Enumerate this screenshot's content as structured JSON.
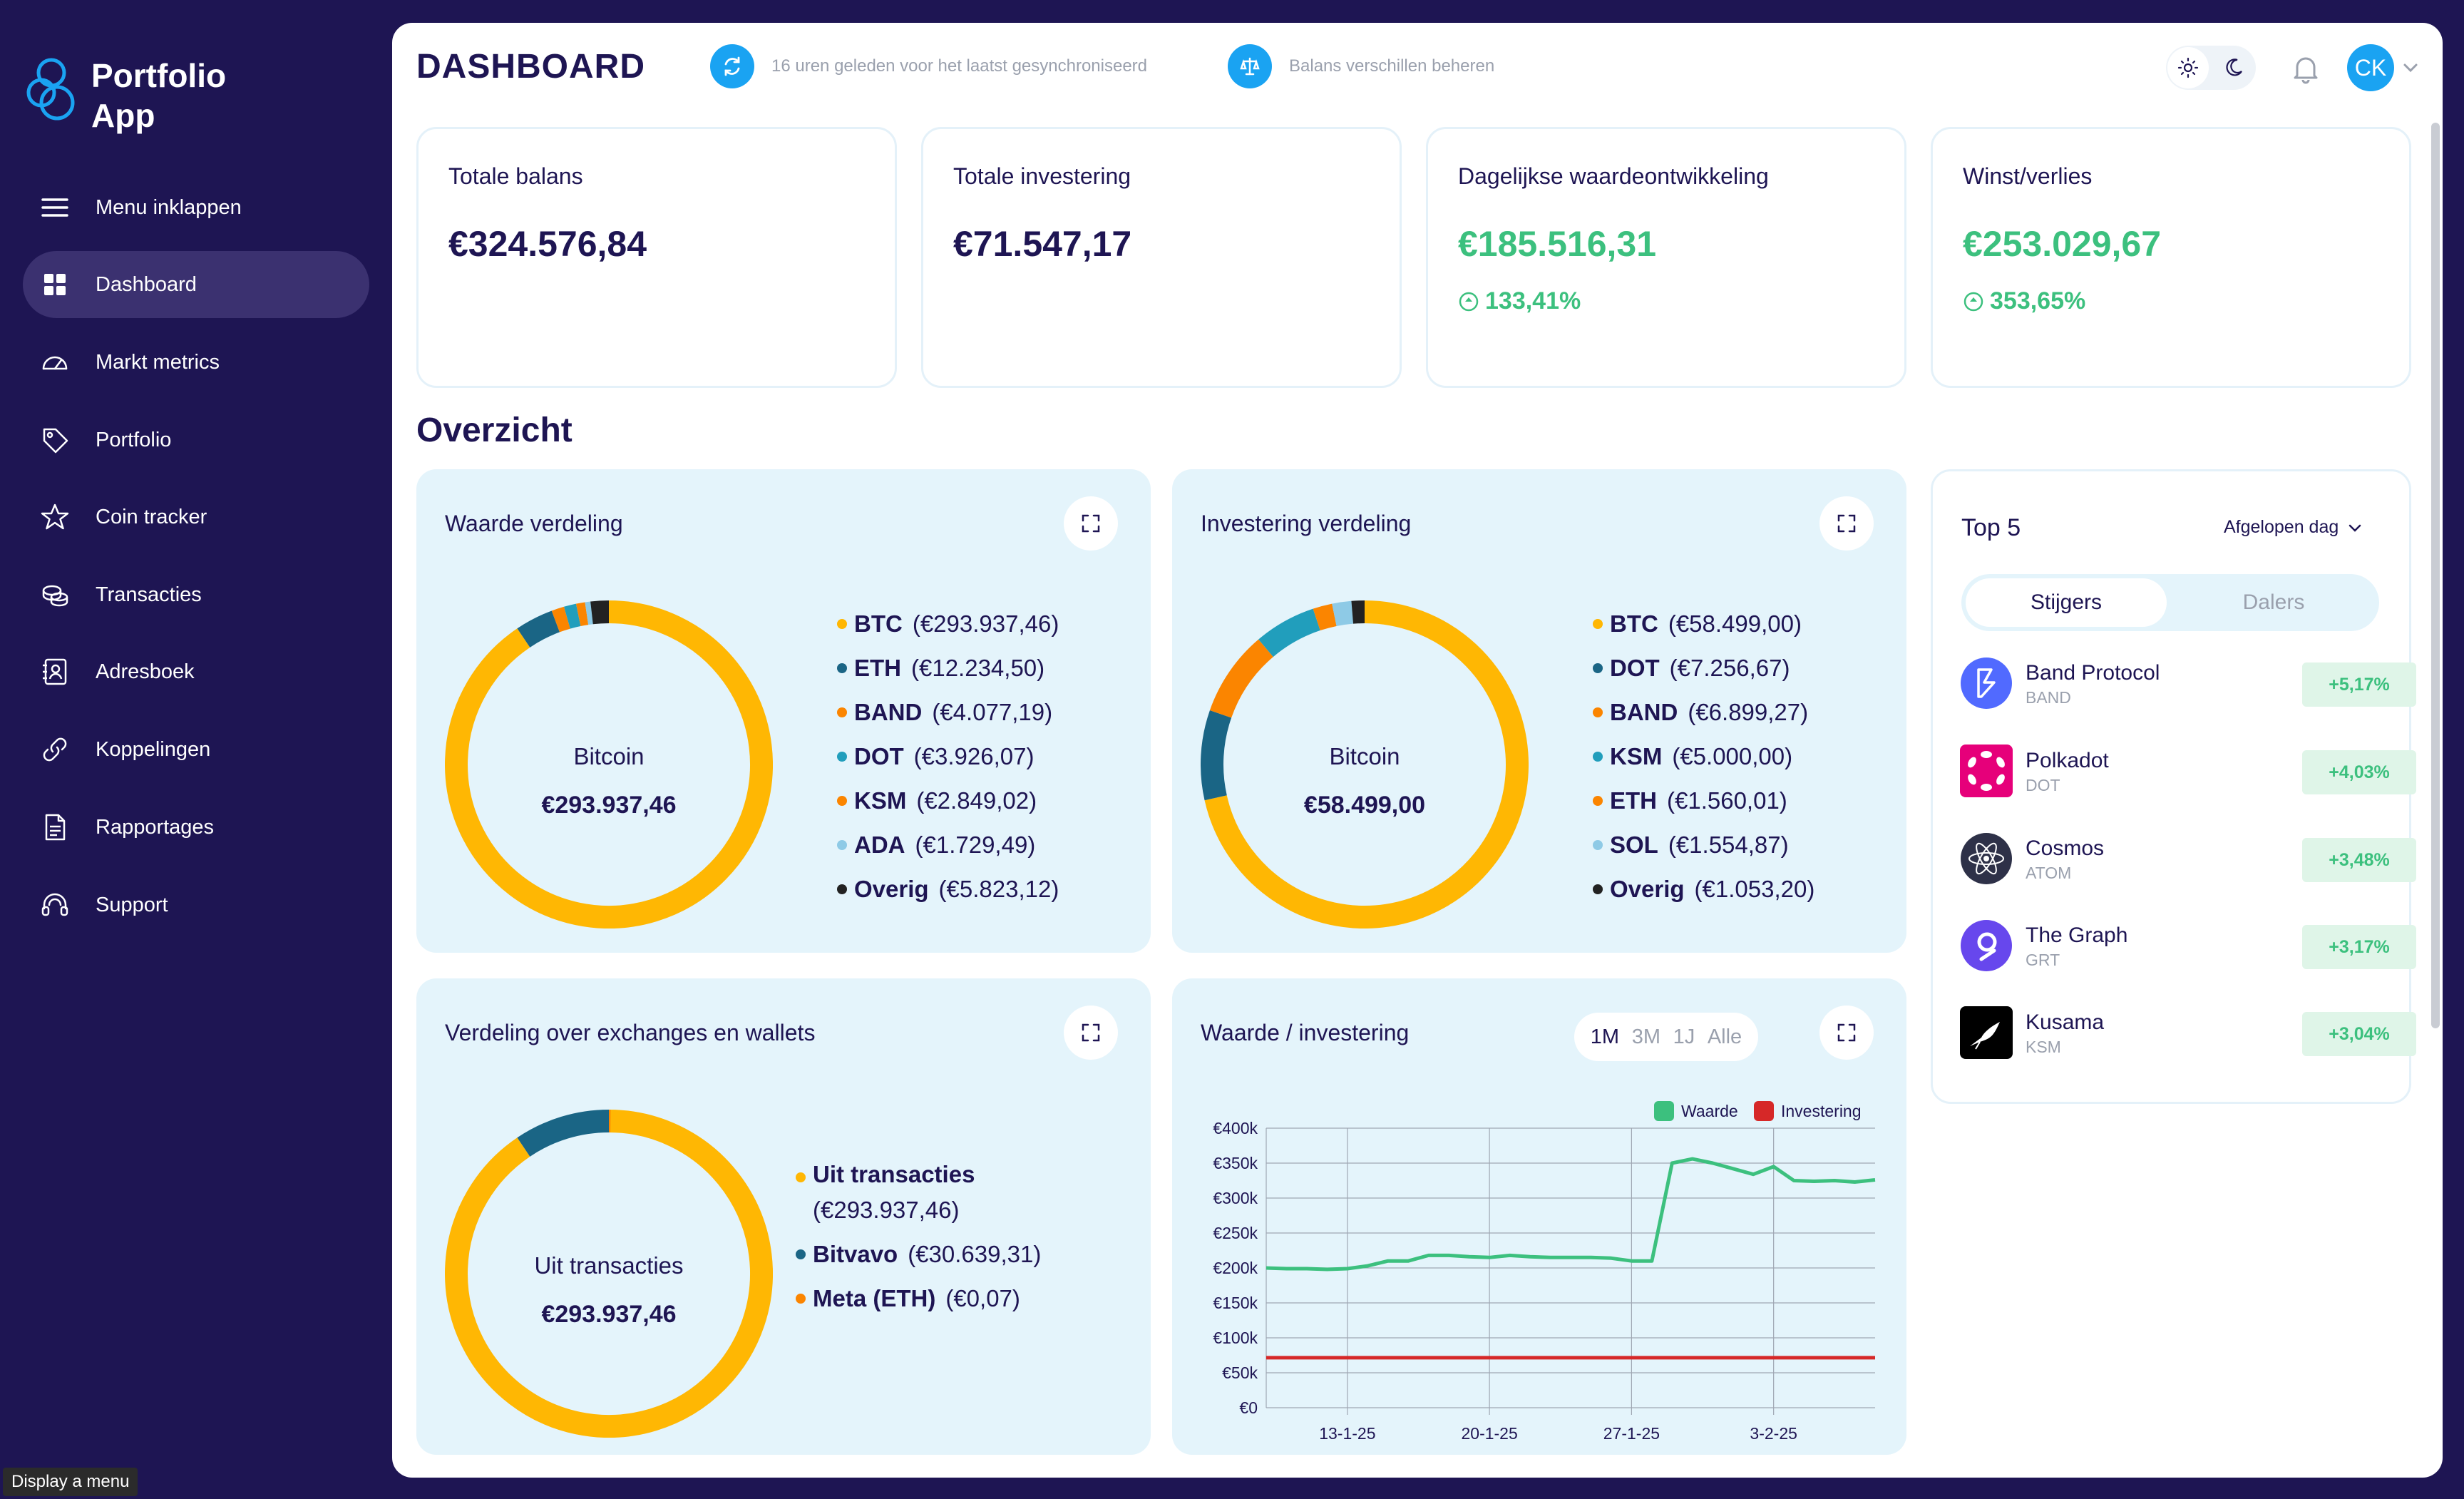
{
  "app": {
    "name_line1": "Portfolio",
    "name_line2": "App"
  },
  "sidebar": {
    "items": [
      {
        "label": "Menu inklappen",
        "icon": "hamburger-icon"
      },
      {
        "label": "Dashboard",
        "icon": "grid-icon",
        "active": true
      },
      {
        "label": "Markt metrics",
        "icon": "gauge-icon"
      },
      {
        "label": "Portfolio",
        "icon": "tag-icon"
      },
      {
        "label": "Coin tracker",
        "icon": "star-icon"
      },
      {
        "label": "Transacties",
        "icon": "coins-icon"
      },
      {
        "label": "Adresboek",
        "icon": "contact-book-icon"
      },
      {
        "label": "Koppelingen",
        "icon": "link-icon"
      },
      {
        "label": "Rapportages",
        "icon": "document-icon"
      },
      {
        "label": "Support",
        "icon": "headset-icon"
      }
    ],
    "tooltip": "Display a menu"
  },
  "header": {
    "title": "DASHBOARD",
    "sync_text": "16 uren geleden voor het laatst gesynchroniseerd",
    "balance_text": "Balans verschillen beheren",
    "avatar_initials": "CK"
  },
  "stats": [
    {
      "label": "Totale balans",
      "value": "€324.576,84"
    },
    {
      "label": "Totale investering",
      "value": "€71.547,17"
    },
    {
      "label": "Dagelijkse waardeontwikkeling",
      "value": "€185.516,31",
      "pct": "133,41%"
    },
    {
      "label": "Winst/verlies",
      "value": "€253.029,67",
      "pct": "353,65%"
    }
  ],
  "overview_title": "Overzicht",
  "colors": {
    "navy": "#1e1553",
    "accent_blue": "#1aa3f2",
    "green": "#3cc07e",
    "yellow": "#ffb703",
    "teal": "#1a6585",
    "orange": "#fb8500",
    "cyan": "#219ebc",
    "light_blue": "#8ecae6",
    "black": "#222222",
    "red": "#d62828"
  },
  "waarde_verdeling": {
    "title": "Waarde verdeling",
    "center_name": "Bitcoin",
    "center_value": "€293.937,46",
    "items": [
      {
        "sym": "BTC",
        "amount": "(€293.937,46)",
        "value": 293937.46,
        "color": "#ffb703"
      },
      {
        "sym": "ETH",
        "amount": "(€12.234,50)",
        "value": 12234.5,
        "color": "#1a6585"
      },
      {
        "sym": "BAND",
        "amount": "(€4.077,19)",
        "value": 4077.19,
        "color": "#fb8500"
      },
      {
        "sym": "DOT",
        "amount": "(€3.926,07)",
        "value": 3926.07,
        "color": "#219ebc"
      },
      {
        "sym": "KSM",
        "amount": "(€2.849,02)",
        "value": 2849.02,
        "color": "#fb8500"
      },
      {
        "sym": "ADA",
        "amount": "(€1.729,49)",
        "value": 1729.49,
        "color": "#8ecae6"
      },
      {
        "sym": "Overig",
        "amount": "(€5.823,12)",
        "value": 5823.12,
        "color": "#222222"
      }
    ]
  },
  "investering_verdeling": {
    "title": "Investering verdeling",
    "center_name": "Bitcoin",
    "center_value": "€58.499,00",
    "items": [
      {
        "sym": "BTC",
        "amount": "(€58.499,00)",
        "value": 58499.0,
        "color": "#ffb703"
      },
      {
        "sym": "DOT",
        "amount": "(€7.256,67)",
        "value": 7256.67,
        "color": "#1a6585"
      },
      {
        "sym": "BAND",
        "amount": "(€6.899,27)",
        "value": 6899.27,
        "color": "#fb8500"
      },
      {
        "sym": "KSM",
        "amount": "(€5.000,00)",
        "value": 5000.0,
        "color": "#219ebc"
      },
      {
        "sym": "ETH",
        "amount": "(€1.560,01)",
        "value": 1560.01,
        "color": "#fb8500"
      },
      {
        "sym": "SOL",
        "amount": "(€1.554,87)",
        "value": 1554.87,
        "color": "#8ecae6"
      },
      {
        "sym": "Overig",
        "amount": "(€1.053,20)",
        "value": 1053.2,
        "color": "#222222"
      }
    ]
  },
  "exchanges": {
    "title": "Verdeling over exchanges en wallets",
    "center_name": "Uit transacties",
    "center_value": "€293.937,46",
    "items": [
      {
        "sym": "Uit transacties",
        "amount": "(€293.937,46)",
        "value": 293937.46,
        "color": "#ffb703"
      },
      {
        "sym": "Bitvavo",
        "amount": "(€30.639,31)",
        "value": 30639.31,
        "color": "#1a6585"
      },
      {
        "sym": "Meta (ETH)",
        "amount": "(€0,07)",
        "value": 0.07,
        "color": "#fb8500"
      }
    ]
  },
  "value_chart": {
    "title": "Waarde / investering",
    "ranges": [
      "1M",
      "3M",
      "1J",
      "Alle"
    ],
    "selected_range": "1M"
  },
  "chart_data": {
    "type": "line",
    "title": "Waarde / investering",
    "x_ticks": [
      "13-1-25",
      "20-1-25",
      "27-1-25",
      "3-2-25"
    ],
    "y_ticks": [
      "€400k",
      "€350k",
      "€300k",
      "€250k",
      "€200k",
      "€150k",
      "€100k",
      "€50k",
      "€0"
    ],
    "ylim": [
      0,
      400000
    ],
    "legend_position": "top-right",
    "grid": true,
    "x": [
      "9-1-25",
      "10-1-25",
      "11-1-25",
      "12-1-25",
      "13-1-25",
      "14-1-25",
      "15-1-25",
      "16-1-25",
      "17-1-25",
      "18-1-25",
      "19-1-25",
      "20-1-25",
      "21-1-25",
      "22-1-25",
      "23-1-25",
      "24-1-25",
      "25-1-25",
      "26-1-25",
      "27-1-25",
      "28-1-25",
      "29-1-25",
      "30-1-25",
      "31-1-25",
      "1-2-25",
      "2-2-25",
      "3-2-25",
      "4-2-25",
      "5-2-25",
      "6-2-25",
      "7-2-25",
      "8-2-25"
    ],
    "series": [
      {
        "name": "Waarde",
        "color": "#3cc07e",
        "values": [
          200000,
          199000,
          199000,
          198000,
          199000,
          203000,
          210000,
          210000,
          218000,
          218000,
          216000,
          215000,
          218000,
          216000,
          215000,
          215000,
          215000,
          214000,
          210000,
          210000,
          350000,
          356000,
          350000,
          342000,
          334000,
          345000,
          325000,
          324000,
          325000,
          323000,
          326000
        ]
      },
      {
        "name": "Investering",
        "color": "#d62828",
        "values": [
          71547,
          71547,
          71547,
          71547,
          71547,
          71547,
          71547,
          71547,
          71547,
          71547,
          71547,
          71547,
          71547,
          71547,
          71547,
          71547,
          71547,
          71547,
          71547,
          71547,
          71547,
          71547,
          71547,
          71547,
          71547,
          71547,
          71547,
          71547,
          71547,
          71547,
          71547
        ]
      }
    ]
  },
  "top5": {
    "title": "Top 5",
    "period": "Afgelopen dag",
    "tab_risers": "Stijgers",
    "tab_fallers": "Dalers",
    "coins": [
      {
        "name": "Band Protocol",
        "symbol": "BAND",
        "change": "+5,17%",
        "icon": "band-protocol-logo",
        "color": "#516aff"
      },
      {
        "name": "Polkadot",
        "symbol": "DOT",
        "change": "+4,03%",
        "icon": "polkadot-logo",
        "color": "#e6007a"
      },
      {
        "name": "Cosmos",
        "symbol": "ATOM",
        "change": "+3,48%",
        "icon": "cosmos-logo",
        "color": "#2e3148"
      },
      {
        "name": "The Graph",
        "symbol": "GRT",
        "change": "+3,17%",
        "icon": "the-graph-logo",
        "color": "#6747ed"
      },
      {
        "name": "Kusama",
        "symbol": "KSM",
        "change": "+3,04%",
        "icon": "kusama-logo",
        "color": "#000000"
      }
    ]
  }
}
